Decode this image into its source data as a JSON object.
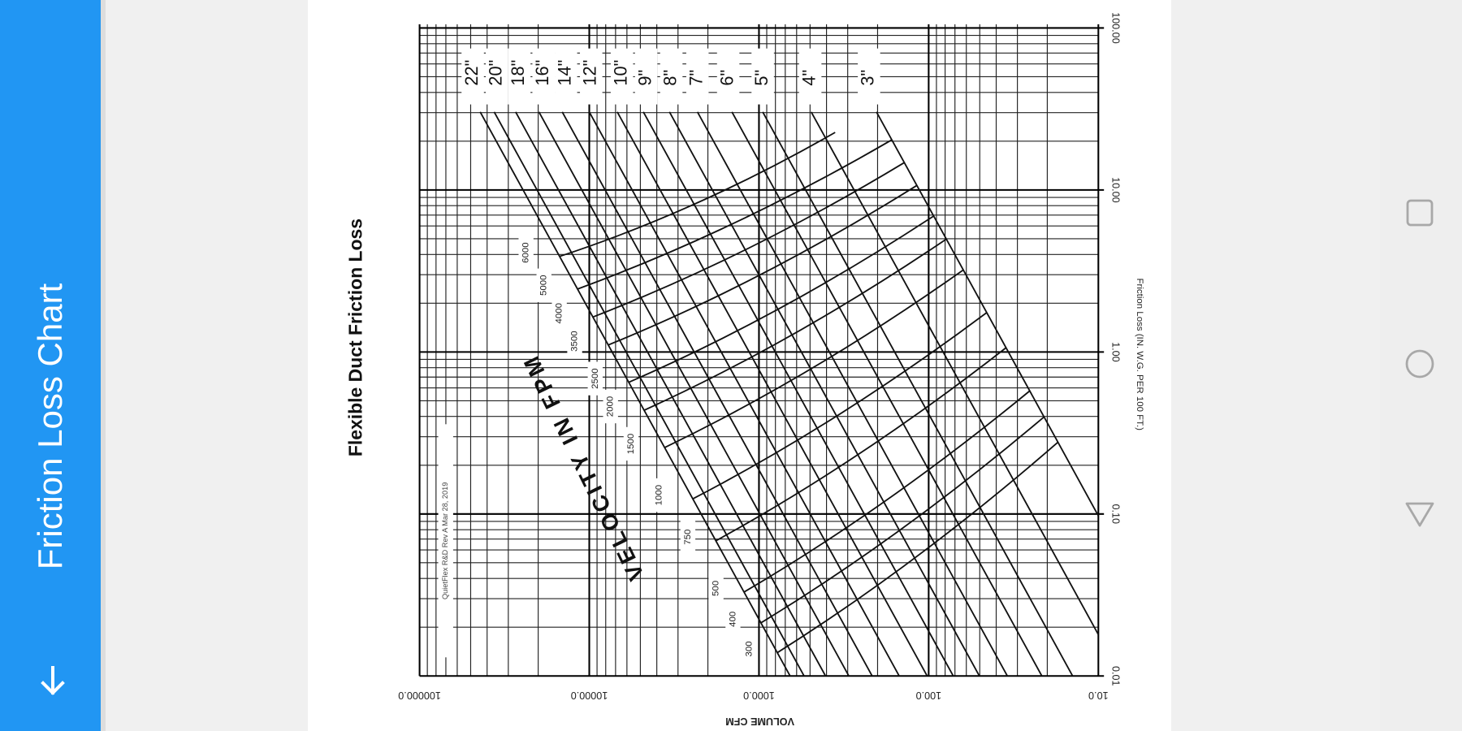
{
  "app_bar": {
    "title": "Friction Loss Chart"
  },
  "chart_image": {
    "title": "Flexible Duct Friction Loss",
    "x_label": "VOLUME CFM",
    "y_label": "Friction Loss (IN. W.G. PER 100 FT.)",
    "x_ticks": [
      {
        "value": 100000,
        "label": "100000.0"
      },
      {
        "value": 10000,
        "label": "10000.0"
      },
      {
        "value": 1000,
        "label": "1000.0"
      },
      {
        "value": 100,
        "label": "100.0"
      },
      {
        "value": 10,
        "label": "10.0"
      }
    ],
    "y_ticks": [
      {
        "value": 100,
        "label": "100.00"
      },
      {
        "value": 10,
        "label": "10.00"
      },
      {
        "value": 1,
        "label": "1.00"
      },
      {
        "value": 0.1,
        "label": "0.10"
      },
      {
        "value": 0.01,
        "label": "0.01"
      }
    ],
    "duct_sizes": [
      "22\"",
      "20\"",
      "18\"",
      "16\"",
      "14\"",
      "12\"",
      "10\"",
      "9\"",
      "8\"",
      "7\"",
      "6\"",
      "5\"",
      "4\"",
      "3\""
    ],
    "velocity_label": "VELOCITY IN FPM",
    "velocities": [
      6000,
      5000,
      4000,
      3500,
      2500,
      2000,
      1500,
      1000,
      750,
      500,
      400,
      300
    ],
    "footnote": "QuietFlex R&D Rev A Mar 28, 2019"
  }
}
